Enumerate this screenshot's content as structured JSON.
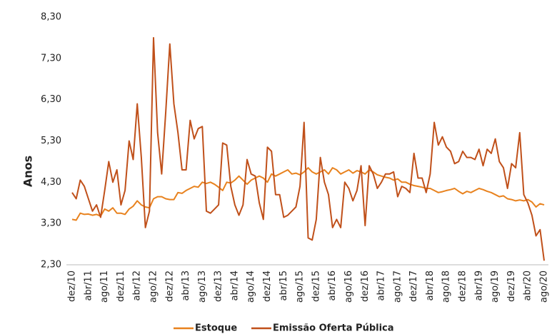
{
  "chart_data": {
    "type": "line",
    "y_label": "Anos",
    "categories": [
      "dez/10",
      null,
      null,
      null,
      "abr/11",
      null,
      null,
      null,
      "ago/11",
      null,
      null,
      null,
      "dez/11",
      null,
      null,
      null,
      "abr/12",
      null,
      null,
      null,
      "ago/12",
      null,
      null,
      null,
      "dez/12",
      null,
      null,
      null,
      "abr/13",
      null,
      null,
      null,
      "ago/13",
      null,
      null,
      null,
      "dez/13",
      null,
      null,
      null,
      "abr/14",
      null,
      null,
      null,
      "ago/14",
      null,
      null,
      null,
      "dez/14",
      null,
      null,
      null,
      "abr/15",
      null,
      null,
      null,
      "ago/15",
      null,
      null,
      null,
      "dez/15",
      null,
      null,
      null,
      "abr/16",
      null,
      null,
      null,
      "ago/16",
      null,
      null,
      null,
      "dez/16",
      null,
      null,
      null,
      "abr/17",
      null,
      null,
      null,
      "ago/17",
      null,
      null,
      null,
      "dez/17",
      null,
      null,
      null,
      "abr/18",
      null,
      null,
      null,
      "ago/18",
      null,
      null,
      null,
      "dez/18",
      null,
      null,
      null,
      "abr/19",
      null,
      null,
      null,
      "ago/19",
      null,
      null,
      null,
      "dez/19",
      null,
      null,
      null,
      "abr/20",
      null,
      null,
      null,
      "ago/20"
    ],
    "series": [
      {
        "name": "Estoque",
        "color": "#e8821e",
        "values": [
          3.4,
          3.38,
          3.55,
          3.52,
          3.53,
          3.5,
          3.52,
          3.48,
          3.65,
          3.6,
          3.68,
          3.55,
          3.55,
          3.52,
          3.65,
          3.72,
          3.85,
          3.75,
          3.7,
          3.68,
          3.9,
          3.95,
          3.95,
          3.9,
          3.88,
          3.88,
          4.05,
          4.03,
          4.1,
          4.15,
          4.2,
          4.18,
          4.3,
          4.27,
          4.3,
          4.25,
          4.18,
          4.1,
          4.3,
          4.28,
          4.35,
          4.45,
          4.35,
          4.25,
          4.35,
          4.4,
          4.45,
          4.4,
          4.3,
          4.5,
          4.45,
          4.5,
          4.55,
          4.6,
          4.5,
          4.52,
          4.48,
          4.55,
          4.65,
          4.55,
          4.5,
          4.55,
          4.6,
          4.5,
          4.65,
          4.6,
          4.5,
          4.55,
          4.6,
          4.52,
          4.58,
          4.55,
          4.5,
          4.6,
          4.55,
          4.48,
          4.45,
          4.42,
          4.4,
          4.35,
          4.38,
          4.3,
          4.3,
          4.25,
          4.22,
          4.2,
          4.18,
          4.15,
          4.15,
          4.1,
          4.05,
          4.07,
          4.1,
          4.12,
          4.15,
          4.08,
          4.02,
          4.08,
          4.05,
          4.1,
          4.15,
          4.12,
          4.08,
          4.05,
          4.0,
          3.95,
          3.97,
          3.9,
          3.88,
          3.85,
          3.87,
          3.85,
          3.88,
          3.82,
          3.7,
          3.78,
          3.75
        ]
      },
      {
        "name": "Emissão Oferta Pública",
        "color": "#c0501a",
        "values": [
          4.05,
          3.9,
          4.35,
          4.2,
          3.9,
          3.6,
          3.75,
          3.45,
          4.1,
          4.8,
          4.3,
          4.6,
          3.75,
          4.1,
          5.3,
          4.85,
          6.2,
          4.9,
          3.2,
          3.6,
          7.8,
          5.5,
          4.5,
          6.0,
          7.65,
          6.2,
          5.5,
          4.6,
          4.6,
          5.8,
          5.35,
          5.6,
          5.65,
          3.6,
          3.55,
          3.65,
          3.75,
          5.25,
          5.2,
          4.2,
          3.75,
          3.5,
          3.75,
          4.85,
          4.5,
          4.45,
          3.8,
          3.4,
          5.15,
          5.05,
          4.0,
          4.0,
          3.45,
          3.5,
          3.6,
          3.7,
          4.2,
          5.75,
          2.95,
          2.9,
          3.4,
          4.9,
          4.3,
          4.0,
          3.2,
          3.4,
          3.2,
          4.3,
          4.15,
          3.85,
          4.1,
          4.7,
          3.25,
          4.7,
          4.5,
          4.15,
          4.3,
          4.5,
          4.5,
          4.55,
          3.95,
          4.2,
          4.15,
          4.05,
          5.0,
          4.4,
          4.4,
          4.05,
          4.5,
          5.75,
          5.2,
          5.4,
          5.15,
          5.05,
          4.75,
          4.8,
          5.05,
          4.9,
          4.9,
          4.85,
          5.1,
          4.7,
          5.1,
          5.0,
          5.35,
          4.8,
          4.65,
          4.15,
          4.75,
          4.65,
          5.5,
          4.0,
          3.8,
          3.5,
          3.0,
          3.15,
          2.4
        ]
      }
    ],
    "ylim": [
      2.3,
      8.3
    ],
    "yticks": [
      {
        "value": 2.3,
        "label": "2,30"
      },
      {
        "value": 3.3,
        "label": "3,30"
      },
      {
        "value": 4.3,
        "label": "4,30"
      },
      {
        "value": 5.3,
        "label": "5,30"
      },
      {
        "value": 6.3,
        "label": "6,30"
      },
      {
        "value": 7.3,
        "label": "7,30"
      },
      {
        "value": 8.3,
        "label": "8,30"
      }
    ],
    "grid": false
  }
}
